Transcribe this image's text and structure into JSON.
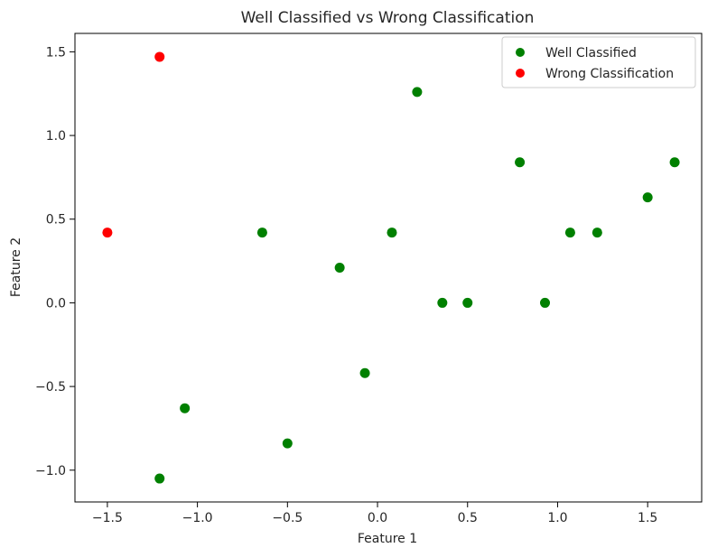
{
  "chart_data": {
    "type": "scatter",
    "title": "Well Classified vs Wrong Classification",
    "xlabel": "Feature 1",
    "ylabel": "Feature 2",
    "xlim": [
      -1.68,
      1.8
    ],
    "ylim": [
      -1.19,
      1.61
    ],
    "xticks": [
      -1.5,
      -1.0,
      -0.5,
      0.0,
      0.5,
      1.0,
      1.5
    ],
    "xtick_labels": [
      "−1.5",
      "−1.0",
      "−0.5",
      "0.0",
      "0.5",
      "1.0",
      "1.5"
    ],
    "yticks": [
      1.5,
      1.0,
      0.5,
      0.0,
      -0.5,
      -1.0
    ],
    "ytick_labels": [
      "1.5",
      "1.0",
      "0.5",
      "0.0",
      "−0.5",
      "−1.0"
    ],
    "grid": false,
    "legend_position": "top-right",
    "series": [
      {
        "name": "Well Classified",
        "color": "#008000",
        "points": [
          [
            0.22,
            1.26
          ],
          [
            0.79,
            0.84
          ],
          [
            1.65,
            0.84
          ],
          [
            1.5,
            0.63
          ],
          [
            -0.64,
            0.42
          ],
          [
            0.08,
            0.42
          ],
          [
            1.07,
            0.42
          ],
          [
            1.22,
            0.42
          ],
          [
            -0.21,
            0.21
          ],
          [
            0.36,
            0.0
          ],
          [
            0.5,
            0.0
          ],
          [
            0.93,
            0.0
          ],
          [
            -0.07,
            -0.42
          ],
          [
            -1.07,
            -0.63
          ],
          [
            -0.5,
            -0.84
          ],
          [
            -1.21,
            -1.05
          ]
        ]
      },
      {
        "name": "Wrong Classification",
        "color": "#ff0000",
        "points": [
          [
            -1.21,
            1.47
          ],
          [
            -1.5,
            0.42
          ]
        ]
      }
    ]
  }
}
